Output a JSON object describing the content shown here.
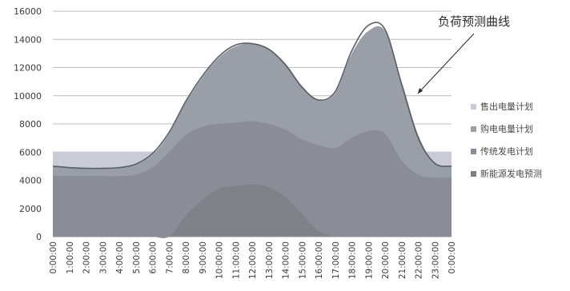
{
  "chart_data": {
    "type": "area",
    "annotation": "负荷预测曲线",
    "ylim": [
      0,
      16000
    ],
    "yticks": [
      0,
      2000,
      4000,
      6000,
      8000,
      10000,
      12000,
      14000,
      16000
    ],
    "categories": [
      "0:00:00",
      "1:00:00",
      "2:00:00",
      "3:00:00",
      "4:00:00",
      "5:00:00",
      "6:00:00",
      "7:00:00",
      "8:00:00",
      "9:00:00",
      "10:00:00",
      "11:00:00",
      "12:00:00",
      "13:00:00",
      "14:00:00",
      "15:00:00",
      "16:00:00",
      "17:00:00",
      "18:00:00",
      "19:00:00",
      "20:00:00",
      "21:00:00",
      "22:00:00",
      "23:00:00",
      "0:00:00"
    ],
    "series": [
      {
        "name": "售出电量计划",
        "color": "#c9ccd4",
        "values": [
          6000,
          6000,
          6000,
          6000,
          6000,
          6000,
          6000,
          6000,
          6000,
          6000,
          6000,
          6000,
          6000,
          6000,
          6000,
          6000,
          6000,
          6000,
          6000,
          6000,
          6000,
          6000,
          6000,
          6000,
          6000
        ]
      },
      {
        "name": "购电电量计划",
        "color": "#9a9ea7",
        "values": [
          5000,
          4900,
          4850,
          4850,
          4900,
          5100,
          5800,
          7300,
          9500,
          11300,
          12700,
          13500,
          13700,
          13300,
          12300,
          10700,
          9700,
          10200,
          13000,
          14600,
          14600,
          11000,
          7200,
          5200,
          5000
        ]
      },
      {
        "name": "传统发电计划",
        "color": "#8a8d95",
        "values": [
          4300,
          4300,
          4300,
          4300,
          4300,
          4400,
          4900,
          6000,
          7200,
          7800,
          8000,
          8100,
          8200,
          8000,
          7600,
          6900,
          6500,
          6300,
          7000,
          7500,
          7300,
          5400,
          4400,
          4200,
          4200
        ]
      },
      {
        "name": "新能源发电预测",
        "color": "#7c7f87",
        "values": [
          0,
          0,
          0,
          0,
          0,
          0,
          0,
          0,
          1500,
          2600,
          3400,
          3600,
          3700,
          3500,
          2800,
          1600,
          400,
          0,
          0,
          0,
          0,
          0,
          0,
          0,
          0
        ]
      }
    ],
    "load_forecast": {
      "color": "#5a5d66",
      "values": [
        5000,
        4900,
        4850,
        4850,
        4900,
        5150,
        5900,
        7400,
        9600,
        11400,
        12800,
        13600,
        13700,
        13300,
        12200,
        10600,
        9700,
        10300,
        13200,
        15000,
        14700,
        10800,
        7000,
        5200,
        5000
      ]
    }
  }
}
